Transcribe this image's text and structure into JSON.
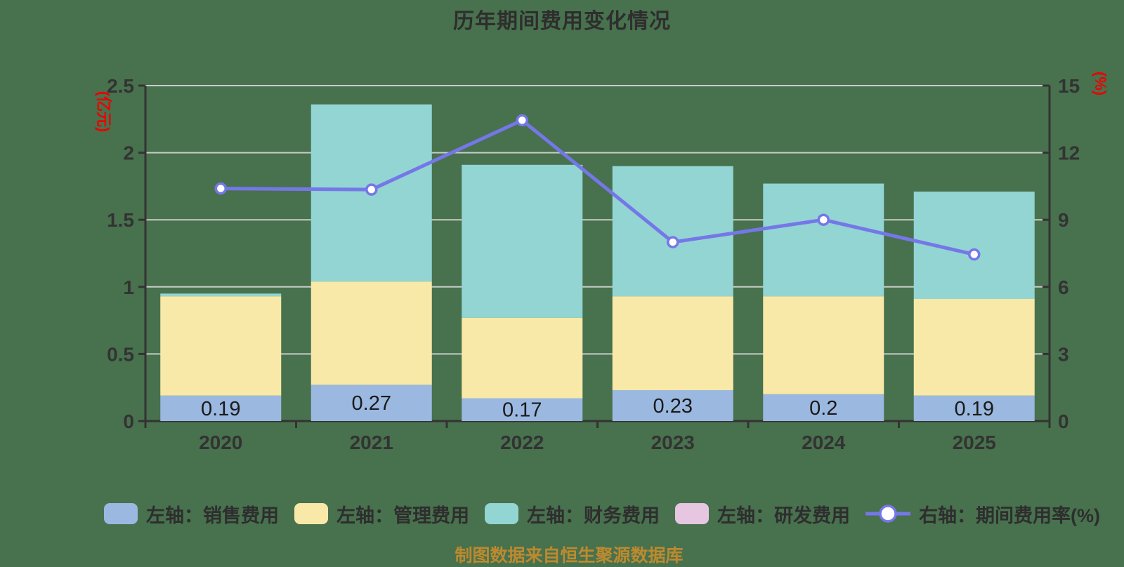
{
  "title": "历年期间费用变化情况",
  "footer": "制图数据来自恒生聚源数据库",
  "colors": {
    "background": "#48714E",
    "grid": "#C7CCC7",
    "axis": "#333333",
    "tick_label": "#333333",
    "data_label": "#1A1A1A",
    "axis_title_red": "#EC0000",
    "footer_orange": "#BC8A2E",
    "sales_blue": "#9BB8E0",
    "admin_yellow": "#F8E9A8",
    "finance_teal": "#92D5D3",
    "rd_pink": "#E6C6E0",
    "rate_line": "#7577E8",
    "marker_fill": "#FFFFFF"
  },
  "chart_data": {
    "type": "bar",
    "title": "历年期间费用变化情况",
    "categories": [
      "2020",
      "2021",
      "2022",
      "2023",
      "2024",
      "2025"
    ],
    "series": [
      {
        "key": "sales",
        "name": "左轴：销售费用",
        "type": "bar",
        "axis": "left",
        "color": "#9BB8E0",
        "values": [
          0.19,
          0.27,
          0.17,
          0.23,
          0.2,
          0.19
        ],
        "labels": [
          "0.19",
          "0.27",
          "0.17",
          "0.23",
          "0.2",
          "0.19"
        ]
      },
      {
        "key": "admin",
        "name": "左轴：管理费用",
        "type": "bar",
        "axis": "left",
        "color": "#F8E9A8",
        "values": [
          0.74,
          0.77,
          0.6,
          0.7,
          0.73,
          0.72
        ]
      },
      {
        "key": "finance",
        "name": "左轴：财务费用",
        "type": "bar",
        "axis": "left",
        "color": "#92D5D3",
        "values": [
          0.02,
          1.32,
          1.14,
          0.97,
          0.84,
          0.8
        ]
      },
      {
        "key": "rd",
        "name": "左轴：研发费用",
        "type": "bar",
        "axis": "left",
        "color": "#E6C6E0",
        "values": [
          0,
          0,
          0,
          0,
          0,
          0
        ]
      },
      {
        "key": "rate",
        "name": "右轴：期间费用率(%)",
        "type": "line",
        "axis": "right",
        "color": "#7577E8",
        "values": [
          10.4,
          10.35,
          13.45,
          8.0,
          9.0,
          7.45
        ]
      }
    ],
    "stacked": true,
    "grid": true,
    "legend_position": "bottom",
    "left_axis": {
      "title": "(亿元)",
      "min": 0,
      "max": 2.5,
      "ticks": [
        "0",
        "0.5",
        "1",
        "1.5",
        "2",
        "2.5"
      ]
    },
    "right_axis": {
      "title": "(%)",
      "min": 0,
      "max": 15,
      "ticks": [
        "0",
        "3",
        "6",
        "9",
        "12",
        "15"
      ]
    }
  }
}
